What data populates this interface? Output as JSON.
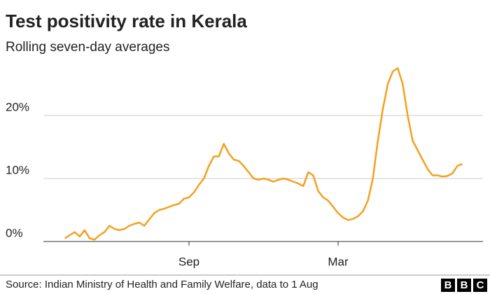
{
  "chart_data": {
    "type": "line",
    "title": "Test positivity rate in Kerala",
    "subtitle": "Rolling seven-day averages",
    "source": "Source: Indian Ministry of Health and Family Welfare, data to 1 Aug",
    "logo": [
      "B",
      "B",
      "C"
    ],
    "categories": [
      null,
      null,
      null,
      null,
      null,
      null,
      null,
      null,
      null,
      null,
      null,
      null,
      null,
      null,
      null,
      null,
      null,
      null,
      null,
      null,
      null,
      null,
      null,
      null,
      null,
      "Sep",
      null,
      null,
      null,
      null,
      null,
      null,
      null,
      null,
      null,
      null,
      null,
      null,
      null,
      null,
      null,
      null,
      null,
      null,
      null,
      null,
      null,
      null,
      null,
      null,
      null,
      null,
      null,
      null,
      null,
      "Mar",
      null,
      null,
      null,
      null,
      null,
      null,
      null,
      null,
      null,
      null,
      null,
      null,
      null,
      null,
      null,
      null,
      null,
      null,
      null,
      null,
      null,
      null,
      null,
      null,
      null
    ],
    "series": [
      {
        "name": "Test positivity rate",
        "color": "#f2a11f",
        "values": [
          0.5,
          1,
          1.5,
          0.8,
          1.8,
          0.5,
          0.3,
          1,
          1.5,
          2.5,
          2,
          1.8,
          2,
          2.5,
          2.8,
          3,
          2.5,
          3.5,
          4.5,
          5,
          5.2,
          5.5,
          5.8,
          6,
          6.8,
          7,
          7.8,
          9,
          10,
          12,
          13.5,
          13.5,
          15.5,
          14,
          13,
          12.8,
          12,
          11,
          10,
          9.8,
          10,
          9.8,
          9.5,
          9.8,
          10,
          9.8,
          9.5,
          9.2,
          8.8,
          11,
          10.5,
          8,
          7,
          6.5,
          5.5,
          4.5,
          3.8,
          3.4,
          3.6,
          4,
          4.8,
          6.5,
          10,
          16,
          21,
          25,
          27,
          27.5,
          25,
          20,
          16,
          14.5,
          13,
          11.5,
          10.5,
          10.5,
          10.3,
          10.4,
          10.8,
          12,
          12.3
        ]
      }
    ],
    "ylim": [
      0,
      30
    ],
    "yticks": [
      {
        "value": 0,
        "label": "0%"
      },
      {
        "value": 10,
        "label": "10%"
      },
      {
        "value": 20,
        "label": "20%"
      }
    ],
    "grid": true
  }
}
